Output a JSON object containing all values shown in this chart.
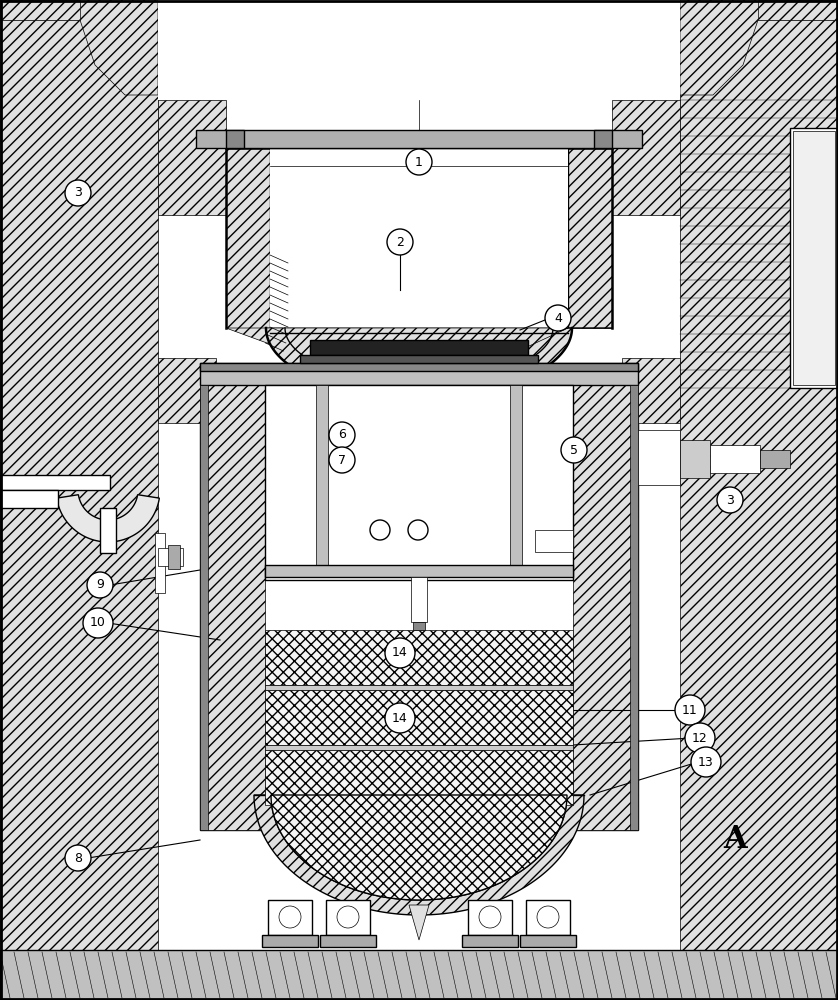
{
  "bg": "#ffffff",
  "lw_thin": 0.5,
  "lw_med": 1.0,
  "lw_thick": 1.8,
  "fig_w": 8.38,
  "fig_h": 10.0,
  "dpi": 100,
  "labels": [
    [
      419,
      162,
      "1"
    ],
    [
      400,
      242,
      "2"
    ],
    [
      78,
      193,
      "3"
    ],
    [
      558,
      318,
      "4"
    ],
    [
      574,
      450,
      "5"
    ],
    [
      342,
      435,
      "6"
    ],
    [
      342,
      460,
      "7"
    ],
    [
      78,
      858,
      "8"
    ],
    [
      100,
      585,
      "9"
    ],
    [
      98,
      623,
      "10"
    ],
    [
      690,
      710,
      "11"
    ],
    [
      700,
      738,
      "12"
    ],
    [
      706,
      762,
      "13"
    ],
    [
      400,
      653,
      "14"
    ],
    [
      400,
      718,
      "14"
    ],
    [
      730,
      500,
      "3"
    ]
  ]
}
